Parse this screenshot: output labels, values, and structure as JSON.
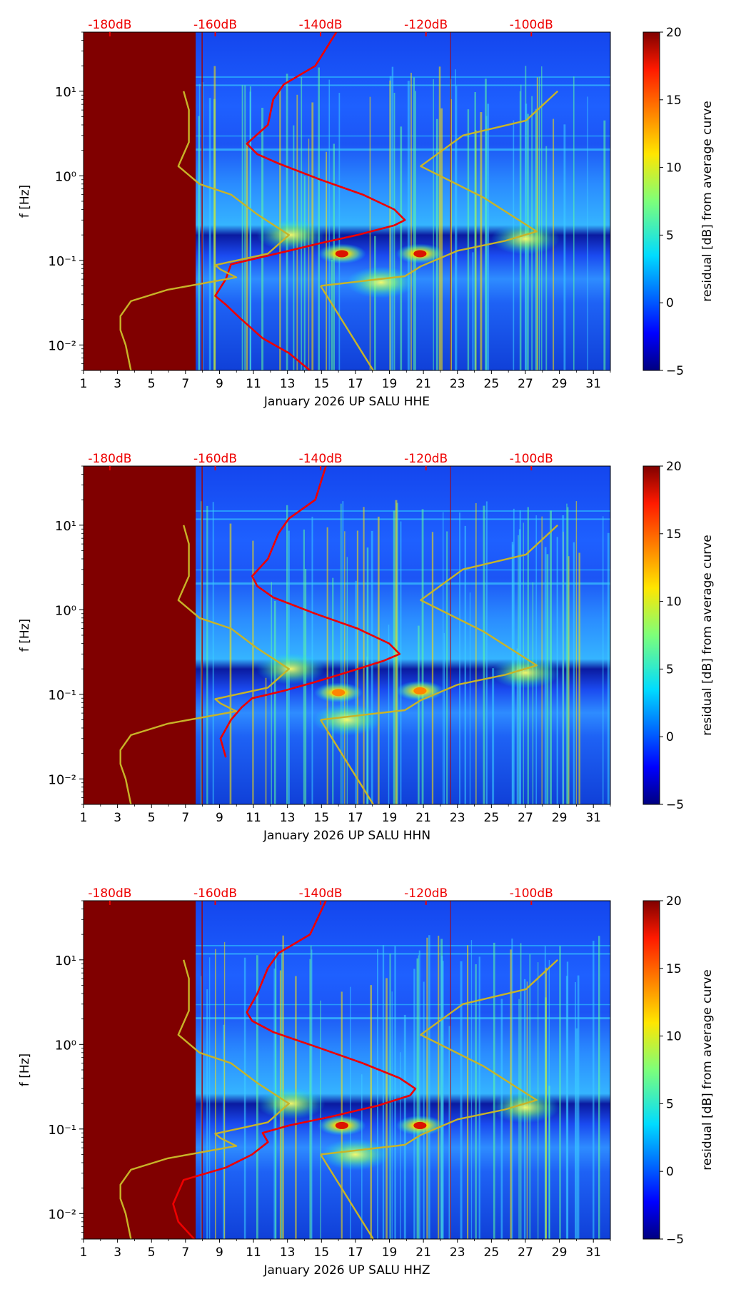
{
  "chart_data": [
    {
      "type": "heatmap",
      "subtype": "spectrogram-residual",
      "xlabel": "January 2026 UP SALU  HHE",
      "ylabel": "f [Hz]",
      "x_ticks": [
        "1",
        "3",
        "5",
        "7",
        "9",
        "11",
        "13",
        "15",
        "17",
        "19",
        "21",
        "23",
        "25",
        "27",
        "29",
        "31"
      ],
      "xlim": [
        1,
        32
      ],
      "y_ticks": [
        "10⁻²",
        "10⁻¹",
        "10⁰",
        "10¹"
      ],
      "ylim_hz": [
        0.005,
        50
      ],
      "top_ticks": [
        "-180dB",
        "-160dB",
        "-140dB",
        "-120dB",
        "-100dB"
      ],
      "top_axis_db_range": [
        -185,
        -85
      ],
      "data_gap_until_day": 7.6,
      "colorbar": {
        "label": "residual [dB] from average curve",
        "ticks": [
          "20",
          "15",
          "10",
          "5",
          "0",
          "−5"
        ],
        "range": [
          -5,
          20
        ]
      },
      "hotspots": [
        {
          "day": 16.2,
          "hz": 0.12,
          "level": 18
        },
        {
          "day": 20.8,
          "hz": 0.12,
          "level": 18
        },
        {
          "day": 13.2,
          "hz": 0.2,
          "level": 9
        },
        {
          "day": 27.0,
          "hz": 0.18,
          "level": 8
        },
        {
          "day": 18.5,
          "hz": 0.055,
          "level": 7
        }
      ],
      "series": [
        {
          "name": "red",
          "color": "#ee0000",
          "points": [
            [
              -142,
              0.005
            ],
            [
              -146,
              0.008
            ],
            [
              -151,
              0.012
            ],
            [
              -155,
              0.02
            ],
            [
              -158,
              0.03
            ],
            [
              -160,
              0.038
            ],
            [
              -158,
              0.06
            ],
            [
              -157,
              0.09
            ],
            [
              -151,
              0.11
            ],
            [
              -146,
              0.13
            ],
            [
              -140,
              0.16
            ],
            [
              -133,
              0.2
            ],
            [
              -126,
              0.26
            ],
            [
              -124,
              0.3
            ],
            [
              -126,
              0.4
            ],
            [
              -132,
              0.6
            ],
            [
              -140,
              0.9
            ],
            [
              -148,
              1.4
            ],
            [
              -152,
              1.8
            ],
            [
              -154,
              2.4
            ],
            [
              -150,
              4
            ],
            [
              -149,
              8
            ],
            [
              -147,
              12
            ],
            [
              -141,
              20
            ],
            [
              -137,
              50
            ]
          ]
        },
        {
          "name": "olive-left",
          "color": "#c8b428",
          "points": [
            [
              -176,
              0.005
            ],
            [
              -177,
              0.01
            ],
            [
              -178,
              0.015
            ],
            [
              -178,
              0.022
            ],
            [
              -176,
              0.033
            ],
            [
              -169,
              0.045
            ],
            [
              -156,
              0.063
            ],
            [
              -159,
              0.078
            ],
            [
              -160,
              0.088
            ],
            [
              -150,
              0.12
            ],
            [
              -146,
              0.2
            ],
            [
              -152,
              0.35
            ],
            [
              -157,
              0.6
            ],
            [
              -163,
              0.8
            ],
            [
              -167,
              1.3
            ],
            [
              -165,
              2.5
            ],
            [
              -165,
              6
            ],
            [
              -166,
              10
            ]
          ]
        },
        {
          "name": "olive-right",
          "color": "#c8b428",
          "points": [
            [
              -140,
              0.05
            ],
            [
              -124,
              0.065
            ],
            [
              -121,
              0.085
            ],
            [
              -114,
              0.13
            ],
            [
              -105,
              0.17
            ],
            [
              -99,
              0.22
            ],
            [
              -109,
              0.55
            ],
            [
              -121,
              1.3
            ],
            [
              -113,
              3
            ],
            [
              -101,
              4.5
            ],
            [
              -95,
              10
            ]
          ]
        },
        {
          "name": "olive-diag",
          "color": "#c8b428",
          "points": [
            [
              -140,
              0.05
            ],
            [
              -130,
              0.005
            ]
          ]
        }
      ]
    },
    {
      "type": "heatmap",
      "subtype": "spectrogram-residual",
      "xlabel": "January 2026 UP SALU  HHN",
      "ylabel": "f [Hz]",
      "x_ticks": [
        "1",
        "3",
        "5",
        "7",
        "9",
        "11",
        "13",
        "15",
        "17",
        "19",
        "21",
        "23",
        "25",
        "27",
        "29",
        "31"
      ],
      "xlim": [
        1,
        32
      ],
      "y_ticks": [
        "10⁻²",
        "10⁻¹",
        "10⁰",
        "10¹"
      ],
      "ylim_hz": [
        0.005,
        50
      ],
      "top_ticks": [
        "-180dB",
        "-160dB",
        "-140dB",
        "-120dB",
        "-100dB"
      ],
      "top_axis_db_range": [
        -185,
        -85
      ],
      "data_gap_until_day": 7.6,
      "colorbar": {
        "label": "residual [dB] from average curve",
        "ticks": [
          "20",
          "15",
          "10",
          "5",
          "0",
          "−5"
        ],
        "range": [
          -5,
          20
        ]
      },
      "hotspots": [
        {
          "day": 16.0,
          "hz": 0.105,
          "level": 14
        },
        {
          "day": 20.8,
          "hz": 0.11,
          "level": 14
        },
        {
          "day": 13.2,
          "hz": 0.2,
          "level": 9
        },
        {
          "day": 27.0,
          "hz": 0.18,
          "level": 8
        },
        {
          "day": 16.5,
          "hz": 0.05,
          "level": 10
        }
      ],
      "series": [
        {
          "name": "red",
          "color": "#ee0000",
          "points": [
            [
              -158,
              0.018
            ],
            [
              -159,
              0.03
            ],
            [
              -157,
              0.05
            ],
            [
              -155,
              0.07
            ],
            [
              -153,
              0.09
            ],
            [
              -147,
              0.11
            ],
            [
              -141,
              0.14
            ],
            [
              -134,
              0.19
            ],
            [
              -128,
              0.25
            ],
            [
              -125,
              0.3
            ],
            [
              -127,
              0.4
            ],
            [
              -133,
              0.6
            ],
            [
              -141,
              0.9
            ],
            [
              -149,
              1.4
            ],
            [
              -152,
              1.9
            ],
            [
              -153,
              2.5
            ],
            [
              -150,
              4
            ],
            [
              -148,
              8
            ],
            [
              -146,
              12
            ],
            [
              -141,
              20
            ],
            [
              -139,
              50
            ]
          ]
        },
        {
          "name": "olive-left",
          "color": "#c8b428",
          "points": [
            [
              -176,
              0.005
            ],
            [
              -177,
              0.01
            ],
            [
              -178,
              0.015
            ],
            [
              -178,
              0.022
            ],
            [
              -176,
              0.033
            ],
            [
              -169,
              0.045
            ],
            [
              -156,
              0.063
            ],
            [
              -159,
              0.078
            ],
            [
              -160,
              0.088
            ],
            [
              -150,
              0.12
            ],
            [
              -146,
              0.2
            ],
            [
              -152,
              0.35
            ],
            [
              -157,
              0.6
            ],
            [
              -163,
              0.8
            ],
            [
              -167,
              1.3
            ],
            [
              -165,
              2.5
            ],
            [
              -165,
              6
            ],
            [
              -166,
              10
            ]
          ]
        },
        {
          "name": "olive-right",
          "color": "#c8b428",
          "points": [
            [
              -140,
              0.05
            ],
            [
              -124,
              0.065
            ],
            [
              -121,
              0.085
            ],
            [
              -114,
              0.13
            ],
            [
              -105,
              0.17
            ],
            [
              -99,
              0.22
            ],
            [
              -109,
              0.55
            ],
            [
              -121,
              1.3
            ],
            [
              -113,
              3
            ],
            [
              -101,
              4.5
            ],
            [
              -95,
              10
            ]
          ]
        },
        {
          "name": "olive-diag",
          "color": "#c8b428",
          "points": [
            [
              -140,
              0.05
            ],
            [
              -130,
              0.005
            ]
          ]
        }
      ]
    },
    {
      "type": "heatmap",
      "subtype": "spectrogram-residual",
      "xlabel": "January 2026 UP SALU  HHZ",
      "ylabel": "f [Hz]",
      "x_ticks": [
        "1",
        "3",
        "5",
        "7",
        "9",
        "11",
        "13",
        "15",
        "17",
        "19",
        "21",
        "23",
        "25",
        "27",
        "29",
        "31"
      ],
      "xlim": [
        1,
        32
      ],
      "y_ticks": [
        "10⁻²",
        "10⁻¹",
        "10⁰",
        "10¹"
      ],
      "ylim_hz": [
        0.005,
        50
      ],
      "top_ticks": [
        "-180dB",
        "-160dB",
        "-140dB",
        "-120dB",
        "-100dB"
      ],
      "top_axis_db_range": [
        -185,
        -85
      ],
      "data_gap_until_day": 7.6,
      "colorbar": {
        "label": "residual [dB] from average curve",
        "ticks": [
          "20",
          "15",
          "10",
          "5",
          "0",
          "−5"
        ],
        "range": [
          -5,
          20
        ]
      },
      "hotspots": [
        {
          "day": 16.2,
          "hz": 0.11,
          "level": 18
        },
        {
          "day": 20.8,
          "hz": 0.11,
          "level": 18
        },
        {
          "day": 13.2,
          "hz": 0.2,
          "level": 9
        },
        {
          "day": 27.0,
          "hz": 0.18,
          "level": 8
        },
        {
          "day": 17.0,
          "hz": 0.05,
          "level": 8
        }
      ],
      "series": [
        {
          "name": "red",
          "color": "#ee0000",
          "points": [
            [
              -164,
              0.005
            ],
            [
              -167,
              0.008
            ],
            [
              -168,
              0.013
            ],
            [
              -167,
              0.018
            ],
            [
              -166,
              0.025
            ],
            [
              -158,
              0.035
            ],
            [
              -153,
              0.05
            ],
            [
              -150,
              0.07
            ],
            [
              -151,
              0.09
            ],
            [
              -146,
              0.11
            ],
            [
              -138,
              0.14
            ],
            [
              -129,
              0.19
            ],
            [
              -123,
              0.25
            ],
            [
              -122,
              0.3
            ],
            [
              -125,
              0.4
            ],
            [
              -132,
              0.6
            ],
            [
              -140,
              0.9
            ],
            [
              -149,
              1.4
            ],
            [
              -153,
              1.9
            ],
            [
              -154,
              2.4
            ],
            [
              -152,
              4
            ],
            [
              -150,
              8
            ],
            [
              -148,
              12
            ],
            [
              -142,
              20
            ],
            [
              -139,
              50
            ]
          ]
        },
        {
          "name": "olive-left",
          "color": "#c8b428",
          "points": [
            [
              -176,
              0.005
            ],
            [
              -177,
              0.01
            ],
            [
              -178,
              0.015
            ],
            [
              -178,
              0.022
            ],
            [
              -176,
              0.033
            ],
            [
              -169,
              0.045
            ],
            [
              -156,
              0.063
            ],
            [
              -159,
              0.078
            ],
            [
              -160,
              0.088
            ],
            [
              -150,
              0.12
            ],
            [
              -146,
              0.2
            ],
            [
              -152,
              0.35
            ],
            [
              -157,
              0.6
            ],
            [
              -163,
              0.8
            ],
            [
              -167,
              1.3
            ],
            [
              -165,
              2.5
            ],
            [
              -165,
              6
            ],
            [
              -166,
              10
            ]
          ]
        },
        {
          "name": "olive-right",
          "color": "#c8b428",
          "points": [
            [
              -140,
              0.05
            ],
            [
              -124,
              0.065
            ],
            [
              -121,
              0.085
            ],
            [
              -114,
              0.13
            ],
            [
              -105,
              0.17
            ],
            [
              -99,
              0.22
            ],
            [
              -109,
              0.55
            ],
            [
              -121,
              1.3
            ],
            [
              -113,
              3
            ],
            [
              -101,
              4.5
            ],
            [
              -95,
              10
            ]
          ]
        },
        {
          "name": "olive-diag",
          "color": "#c8b428",
          "points": [
            [
              -140,
              0.05
            ],
            [
              -130,
              0.005
            ]
          ]
        }
      ]
    }
  ]
}
